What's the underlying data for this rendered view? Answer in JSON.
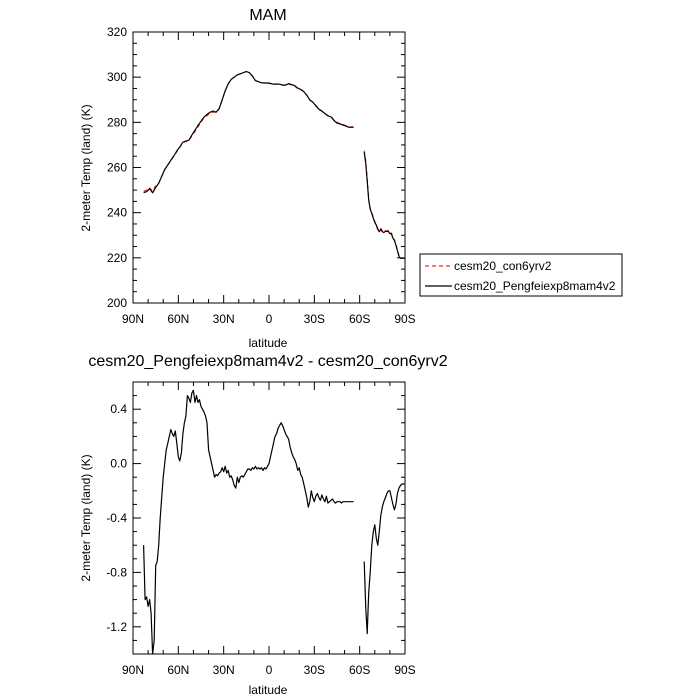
{
  "chart_data": [
    {
      "type": "line",
      "title": "MAM",
      "xlabel": "latitude",
      "ylabel": "2-meter Temp (land) (K)",
      "xlim": [
        90,
        -90
      ],
      "ylim": [
        200,
        320
      ],
      "x_tick_values": [
        90,
        60,
        30,
        0,
        -30,
        -60,
        -90
      ],
      "x_tick_labels": [
        "90N",
        "60N",
        "30N",
        "0",
        "30S",
        "60S",
        "90S"
      ],
      "y_tick_values": [
        200,
        220,
        240,
        260,
        280,
        300,
        320
      ],
      "y_tick_labels": [
        "200",
        "220",
        "240",
        "260",
        "280",
        "300",
        "320"
      ],
      "legend": {
        "placement": "right",
        "entries": [
          {
            "name": "cesm20_con6yrv2",
            "color": "#e8332a",
            "dash": "dashed"
          },
          {
            "name": "cesm20_Pengfeiexp8mam4v2",
            "color": "#000000",
            "dash": "solid"
          }
        ]
      },
      "series": [
        {
          "name": "cesm20_con6yrv2",
          "color": "#e8332a",
          "dash": "dashed",
          "segments": [
            {
              "x": [
                83,
                81,
                79,
                77,
                75,
                73,
                71,
                69,
                67,
                65,
                63,
                61,
                59,
                57,
                55,
                53,
                51,
                49,
                47,
                45,
                43,
                41,
                39,
                37,
                35,
                33,
                31,
                29,
                27,
                25,
                23,
                21,
                19,
                17,
                15,
                13,
                11,
                9,
                7,
                5,
                3,
                1,
                -1,
                -3,
                -5,
                -7,
                -9,
                -11,
                -13,
                -15,
                -17,
                -19,
                -21,
                -23,
                -25,
                -27,
                -29,
                -31,
                -33,
                -35,
                -37,
                -39,
                -41,
                -43,
                -45,
                -47,
                -49,
                -51,
                -53,
                -55,
                -56
              ],
              "y": [
                249.5,
                250.0,
                251.0,
                249.5,
                252.0,
                253.0,
                256.0,
                259.0,
                261.0,
                263.0,
                265.0,
                267.0,
                269.0,
                271.0,
                271.5,
                272.0,
                274.0,
                276.0,
                278.0,
                280.0,
                282.0,
                283.0,
                284.0,
                284.5,
                284.5,
                286.0,
                290.0,
                294.0,
                297.0,
                299.0,
                300.0,
                301.0,
                301.5,
                302.0,
                302.5,
                302.0,
                300.5,
                298.5,
                298.0,
                297.5,
                297.5,
                297.5,
                297.2,
                297.0,
                297.0,
                297.0,
                296.5,
                296.5,
                297.0,
                296.5,
                296.0,
                295.0,
                294.5,
                293.5,
                292.0,
                290.0,
                289.0,
                287.5,
                286.0,
                285.0,
                284.0,
                283.0,
                282.5,
                281.0,
                280.0,
                279.5,
                279.0,
                278.5,
                278.0,
                278.0,
                278.0
              ]
            },
            {
              "x": [
                -63,
                -64,
                -65,
                -66,
                -67,
                -68,
                -69,
                -70,
                -71,
                -72,
                -73,
                -74,
                -75,
                -76,
                -77,
                -78,
                -79,
                -80,
                -81,
                -82,
                -83,
                -84,
                -85,
                -86,
                -87,
                -88,
                -89,
                -90
              ],
              "y": [
                267.5,
                263.0,
                255.0,
                246.0,
                242.0,
                240.0,
                238.0,
                236.0,
                235.0,
                233.0,
                232.0,
                233.0,
                232.0,
                231.5,
                232.0,
                232.0,
                232.0,
                231.0,
                231.0,
                229.0,
                228.0,
                226.0,
                223.5,
                221.0,
                220.0,
                220.0,
                220.0,
                220.0
              ]
            }
          ]
        },
        {
          "name": "cesm20_Pengfeiexp8mam4v2",
          "color": "#000000",
          "dash": "solid",
          "segments": [
            {
              "x": [
                83,
                81,
                79,
                77,
                75,
                73,
                71,
                69,
                67,
                65,
                63,
                61,
                59,
                57,
                55,
                53,
                51,
                49,
                47,
                45,
                43,
                41,
                39,
                37,
                35,
                33,
                31,
                29,
                27,
                25,
                23,
                21,
                19,
                17,
                15,
                13,
                11,
                9,
                7,
                5,
                3,
                1,
                -1,
                -3,
                -5,
                -7,
                -9,
                -11,
                -13,
                -15,
                -17,
                -19,
                -21,
                -23,
                -25,
                -27,
                -29,
                -31,
                -33,
                -35,
                -37,
                -39,
                -41,
                -43,
                -45,
                -47,
                -49,
                -51,
                -53,
                -55,
                -56
              ],
              "y": [
                248.9,
                249.3,
                250.6,
                248.8,
                251.2,
                253.0,
                256.1,
                259.1,
                261.2,
                263.2,
                265.1,
                267.3,
                269.1,
                271.2,
                271.7,
                272.1,
                274.4,
                276.5,
                278.6,
                280.5,
                282.3,
                283.5,
                284.5,
                285.0,
                284.5,
                286.0,
                290.0,
                294.0,
                297.0,
                299.0,
                300.0,
                301.0,
                301.5,
                302.0,
                302.5,
                302.0,
                300.5,
                298.5,
                298.0,
                297.5,
                297.4,
                297.4,
                297.2,
                296.9,
                296.9,
                296.9,
                296.5,
                296.5,
                297.1,
                296.7,
                296.2,
                295.2,
                294.6,
                293.6,
                292.0,
                289.9,
                288.9,
                287.3,
                285.8,
                284.9,
                283.9,
                282.9,
                282.4,
                280.8,
                279.7,
                279.3,
                278.8,
                278.3,
                277.8,
                277.8,
                277.8
              ]
            },
            {
              "x": [
                -63,
                -64,
                -65,
                -66,
                -67,
                -68,
                -69,
                -70,
                -71,
                -72,
                -73,
                -74,
                -75,
                -76,
                -77,
                -78,
                -79,
                -80,
                -81,
                -82,
                -83,
                -84,
                -85,
                -86,
                -87,
                -88,
                -89,
                -90
              ],
              "y": [
                266.8,
                262.0,
                254.2,
                245.5,
                241.6,
                239.6,
                237.5,
                235.6,
                234.5,
                232.5,
                231.6,
                232.6,
                231.6,
                231.2,
                231.7,
                231.7,
                231.7,
                230.7,
                230.7,
                228.7,
                227.7,
                225.7,
                223.2,
                220.7,
                219.8,
                219.8,
                219.8,
                219.8
              ]
            }
          ]
        }
      ]
    },
    {
      "type": "line",
      "title": "cesm20_Pengfeiexp8mam4v2 - cesm20_con6yrv2",
      "xlabel": "latitude",
      "ylabel": "2-meter Temp (land) (K)",
      "xlim": [
        90,
        -90
      ],
      "ylim": [
        -1.4,
        0.6
      ],
      "x_tick_values": [
        90,
        60,
        30,
        0,
        -30,
        -60,
        -90
      ],
      "x_tick_labels": [
        "90N",
        "60N",
        "30N",
        "0",
        "30S",
        "60S",
        "90S"
      ],
      "y_tick_values": [
        0.4,
        0.0,
        -0.4,
        -0.8,
        -1.2
      ],
      "y_tick_labels": [
        "0.4",
        "0.0",
        "-0.4",
        "-0.8",
        "-1.2"
      ],
      "series": [
        {
          "color": "#000000",
          "dash": "solid",
          "segments": [
            {
              "x": [
                83,
                82,
                81,
                80,
                79,
                78,
                77,
                76,
                75,
                74,
                73,
                72,
                71,
                70,
                69,
                68,
                67,
                66,
                65,
                64,
                63,
                62,
                61,
                60,
                59,
                58,
                57,
                56,
                55,
                54,
                53,
                52,
                51,
                50,
                49,
                48,
                47,
                46,
                45,
                44,
                43,
                42,
                41,
                40,
                39,
                38,
                37,
                36,
                35,
                34,
                33,
                32,
                31,
                30,
                29,
                28,
                27,
                26,
                25,
                24,
                23,
                22,
                21,
                20,
                19,
                18,
                17,
                16,
                15,
                14,
                13,
                12,
                11,
                10,
                9,
                8,
                7,
                6,
                5,
                4,
                3,
                2,
                1,
                0,
                -1,
                -2,
                -3,
                -4,
                -5,
                -6,
                -7,
                -8,
                -9,
                -10,
                -11,
                -12,
                -13,
                -14,
                -15,
                -16,
                -17,
                -18,
                -19,
                -20,
                -21,
                -22,
                -23,
                -24,
                -25,
                -26,
                -27,
                -28,
                -29,
                -30,
                -31,
                -32,
                -33,
                -34,
                -35,
                -36,
                -37,
                -38,
                -39,
                -40,
                -41,
                -42,
                -43,
                -44,
                -45,
                -46,
                -47,
                -48,
                -49,
                -50,
                -51,
                -52,
                -53,
                -54,
                -55,
                -56
              ],
              "y": [
                -0.6,
                -1.0,
                -0.98,
                -1.05,
                -1.0,
                -1.1,
                -1.4,
                -1.3,
                -0.75,
                -0.72,
                -0.6,
                -0.4,
                -0.25,
                -0.1,
                0.0,
                0.1,
                0.15,
                0.2,
                0.25,
                0.22,
                0.2,
                0.24,
                0.15,
                0.05,
                0.02,
                0.08,
                0.22,
                0.3,
                0.35,
                0.5,
                0.48,
                0.45,
                0.52,
                0.54,
                0.45,
                0.5,
                0.45,
                0.47,
                0.42,
                0.4,
                0.38,
                0.35,
                0.3,
                0.1,
                0.05,
                0.0,
                -0.05,
                -0.1,
                -0.08,
                -0.09,
                -0.07,
                -0.06,
                -0.03,
                -0.06,
                -0.02,
                -0.07,
                -0.05,
                -0.1,
                -0.09,
                -0.12,
                -0.16,
                -0.18,
                -0.1,
                -0.14,
                -0.1,
                -0.09,
                -0.1,
                -0.08,
                -0.06,
                -0.04,
                -0.04,
                -0.05,
                -0.03,
                -0.04,
                -0.02,
                -0.04,
                -0.03,
                -0.04,
                -0.03,
                -0.05,
                -0.03,
                -0.04,
                -0.02,
                0.0,
                0.05,
                0.1,
                0.15,
                0.2,
                0.22,
                0.26,
                0.28,
                0.3,
                0.28,
                0.25,
                0.22,
                0.2,
                0.18,
                0.12,
                0.08,
                0.05,
                0.03,
                0.0,
                -0.05,
                -0.03,
                -0.08,
                -0.1,
                -0.15,
                -0.2,
                -0.25,
                -0.32,
                -0.28,
                -0.2,
                -0.25,
                -0.28,
                -0.24,
                -0.22,
                -0.25,
                -0.27,
                -0.23,
                -0.26,
                -0.28,
                -0.24,
                -0.29,
                -0.28,
                -0.27,
                -0.26,
                -0.28,
                -0.29,
                -0.28,
                -0.28,
                -0.28,
                -0.29,
                -0.28,
                -0.28,
                -0.28,
                -0.28,
                -0.28,
                -0.28,
                -0.28,
                -0.28
              ]
            },
            {
              "x": [
                -63,
                -64,
                -65,
                -66,
                -67,
                -68,
                -69,
                -70,
                -71,
                -72,
                -73,
                -74,
                -75,
                -76,
                -77,
                -78,
                -79,
                -80,
                -81,
                -82,
                -83,
                -84,
                -85,
                -86,
                -87,
                -88,
                -89,
                -90
              ],
              "y": [
                -0.72,
                -1.05,
                -1.25,
                -0.95,
                -0.8,
                -0.6,
                -0.5,
                -0.45,
                -0.55,
                -0.6,
                -0.5,
                -0.38,
                -0.32,
                -0.28,
                -0.25,
                -0.22,
                -0.2,
                -0.2,
                -0.25,
                -0.3,
                -0.34,
                -0.3,
                -0.22,
                -0.18,
                -0.16,
                -0.15,
                -0.15,
                -0.15
              ]
            }
          ]
        }
      ]
    }
  ]
}
